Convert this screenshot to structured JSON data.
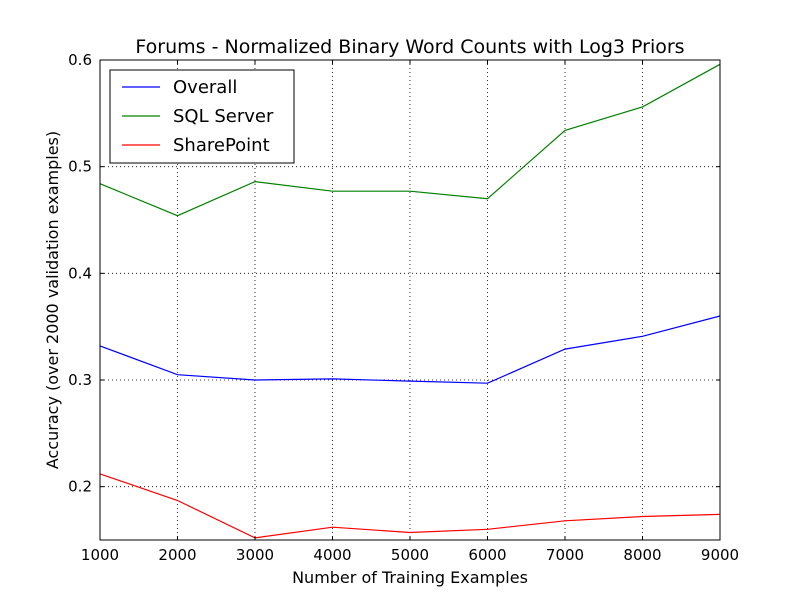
{
  "chart_data": {
    "type": "line",
    "title": "Forums - Normalized Binary Word Counts with Log3 Priors",
    "xlabel": "Number of Training Examples",
    "ylabel": "Accuracy (over 2000 validation examples)",
    "x": [
      1000,
      2000,
      3000,
      4000,
      5000,
      6000,
      7000,
      8000,
      9000
    ],
    "xlim": [
      1000,
      9000
    ],
    "ylim": [
      0.15,
      0.6
    ],
    "xticks": [
      1000,
      2000,
      3000,
      4000,
      5000,
      6000,
      7000,
      8000,
      9000
    ],
    "yticks": [
      0.2,
      0.3,
      0.4,
      0.5,
      0.6
    ],
    "grid": true,
    "legend_position": "top-left",
    "series": [
      {
        "name": "Overall",
        "color": "#0000ff",
        "values": [
          0.332,
          0.305,
          0.3,
          0.301,
          0.299,
          0.297,
          0.329,
          0.341,
          0.36
        ]
      },
      {
        "name": "SQL Server",
        "color": "#008000",
        "values": [
          0.484,
          0.454,
          0.486,
          0.477,
          0.477,
          0.47,
          0.534,
          0.556,
          0.596
        ]
      },
      {
        "name": "SharePoint",
        "color": "#ff0000",
        "values": [
          0.212,
          0.187,
          0.152,
          0.162,
          0.157,
          0.16,
          0.168,
          0.172,
          0.174
        ]
      }
    ]
  }
}
